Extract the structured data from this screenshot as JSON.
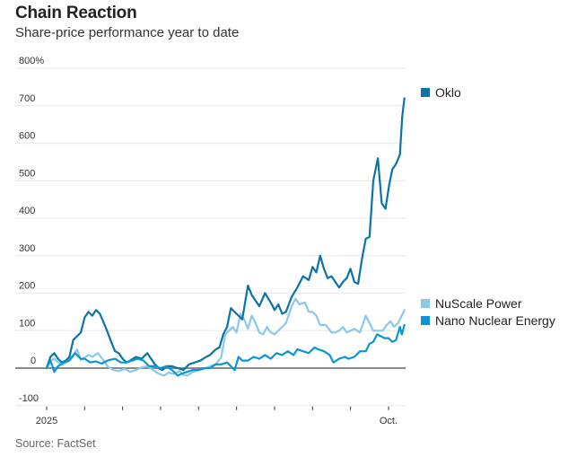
{
  "header": {
    "title": "Chain Reaction",
    "subtitle": "Share-price performance year to date"
  },
  "footer": {
    "source": "Source: FactSet"
  },
  "chart_data": {
    "type": "line",
    "title": "Chain Reaction",
    "subtitle": "Share-price performance year to date",
    "xlabel": "",
    "ylabel": "",
    "ylim": [
      -100,
      800
    ],
    "y_ticks": [
      {
        "value": 800,
        "label": "800%"
      },
      {
        "value": 700,
        "label": "700"
      },
      {
        "value": 600,
        "label": "600"
      },
      {
        "value": 500,
        "label": "500"
      },
      {
        "value": 400,
        "label": "400"
      },
      {
        "value": 300,
        "label": "300"
      },
      {
        "value": 200,
        "label": "200"
      },
      {
        "value": 100,
        "label": "100"
      },
      {
        "value": 0,
        "label": "0"
      },
      {
        "value": -100,
        "label": "-100"
      }
    ],
    "x_unit": "months since Jan 1, 2025",
    "xlim": [
      0,
      9.45
    ],
    "x_ticks": [
      {
        "value": 0,
        "label": "2025"
      },
      {
        "value": 1,
        "label": ""
      },
      {
        "value": 2,
        "label": ""
      },
      {
        "value": 3,
        "label": ""
      },
      {
        "value": 4,
        "label": ""
      },
      {
        "value": 5,
        "label": ""
      },
      {
        "value": 6,
        "label": ""
      },
      {
        "value": 7,
        "label": ""
      },
      {
        "value": 8,
        "label": ""
      },
      {
        "value": 9,
        "label": "Oct."
      }
    ],
    "grid": true,
    "legend_position": "right, beside line ends",
    "series": [
      {
        "name": "NuScale Power",
        "color": "#8cc8ec",
        "points": [
          [
            0,
            0
          ],
          [
            0.1,
            20
          ],
          [
            0.2,
            25
          ],
          [
            0.3,
            15
          ],
          [
            0.4,
            8
          ],
          [
            0.55,
            18
          ],
          [
            0.7,
            35
          ],
          [
            0.8,
            50
          ],
          [
            0.9,
            22
          ],
          [
            1.0,
            28
          ],
          [
            1.1,
            35
          ],
          [
            1.2,
            30
          ],
          [
            1.35,
            40
          ],
          [
            1.5,
            20
          ],
          [
            1.6,
            5
          ],
          [
            1.75,
            -5
          ],
          [
            1.9,
            -8
          ],
          [
            2.05,
            -2
          ],
          [
            2.2,
            -10
          ],
          [
            2.35,
            -5
          ],
          [
            2.5,
            2
          ],
          [
            2.65,
            5
          ],
          [
            2.8,
            -5
          ],
          [
            2.95,
            -15
          ],
          [
            3.1,
            -20
          ],
          [
            3.2,
            -12
          ],
          [
            3.35,
            -15
          ],
          [
            3.5,
            -8
          ],
          [
            3.6,
            -18
          ],
          [
            3.7,
            -20
          ],
          [
            3.85,
            -10
          ],
          [
            4.0,
            -5
          ],
          [
            4.15,
            -2
          ],
          [
            4.3,
            5
          ],
          [
            4.45,
            10
          ],
          [
            4.6,
            30
          ],
          [
            4.7,
            90
          ],
          [
            4.8,
            100
          ],
          [
            4.9,
            110
          ],
          [
            5.0,
            95
          ],
          [
            5.1,
            145
          ],
          [
            5.2,
            130
          ],
          [
            5.3,
            105
          ],
          [
            5.4,
            140
          ],
          [
            5.5,
            120
          ],
          [
            5.6,
            95
          ],
          [
            5.7,
            90
          ],
          [
            5.8,
            110
          ],
          [
            5.9,
            95
          ],
          [
            6.0,
            90
          ],
          [
            6.15,
            105
          ],
          [
            6.3,
            120
          ],
          [
            6.45,
            165
          ],
          [
            6.55,
            185
          ],
          [
            6.65,
            170
          ],
          [
            6.8,
            175
          ],
          [
            6.9,
            150
          ],
          [
            7.0,
            150
          ],
          [
            7.1,
            140
          ],
          [
            7.2,
            115
          ],
          [
            7.35,
            115
          ],
          [
            7.5,
            95
          ],
          [
            7.6,
            95
          ],
          [
            7.7,
            100
          ],
          [
            7.8,
            110
          ],
          [
            7.9,
            95
          ],
          [
            8.0,
            100
          ],
          [
            8.1,
            105
          ],
          [
            8.25,
            95
          ],
          [
            8.4,
            140
          ],
          [
            8.5,
            120
          ],
          [
            8.6,
            100
          ],
          [
            8.7,
            100
          ],
          [
            8.85,
            100
          ],
          [
            8.95,
            115
          ],
          [
            9.05,
            125
          ],
          [
            9.15,
            110
          ],
          [
            9.25,
            120
          ],
          [
            9.35,
            140
          ],
          [
            9.42,
            155
          ]
        ]
      },
      {
        "name": "Oklo",
        "color": "#0a73a8",
        "points": [
          [
            0,
            0
          ],
          [
            0.1,
            30
          ],
          [
            0.2,
            40
          ],
          [
            0.3,
            25
          ],
          [
            0.4,
            15
          ],
          [
            0.5,
            20
          ],
          [
            0.6,
            30
          ],
          [
            0.7,
            75
          ],
          [
            0.8,
            85
          ],
          [
            0.9,
            95
          ],
          [
            1.0,
            135
          ],
          [
            1.1,
            150
          ],
          [
            1.2,
            140
          ],
          [
            1.3,
            155
          ],
          [
            1.4,
            145
          ],
          [
            1.55,
            110
          ],
          [
            1.7,
            70
          ],
          [
            1.8,
            45
          ],
          [
            1.9,
            40
          ],
          [
            2.0,
            25
          ],
          [
            2.1,
            15
          ],
          [
            2.2,
            20
          ],
          [
            2.35,
            30
          ],
          [
            2.5,
            25
          ],
          [
            2.65,
            40
          ],
          [
            2.75,
            25
          ],
          [
            2.85,
            10
          ],
          [
            2.95,
            0
          ],
          [
            3.05,
            -5
          ],
          [
            3.15,
            5
          ],
          [
            3.3,
            5
          ],
          [
            3.45,
            0
          ],
          [
            3.6,
            -5
          ],
          [
            3.75,
            10
          ],
          [
            3.9,
            15
          ],
          [
            4.05,
            20
          ],
          [
            4.2,
            30
          ],
          [
            4.3,
            35
          ],
          [
            4.45,
            50
          ],
          [
            4.55,
            55
          ],
          [
            4.65,
            90
          ],
          [
            4.75,
            110
          ],
          [
            4.85,
            160
          ],
          [
            4.95,
            150
          ],
          [
            5.05,
            140
          ],
          [
            5.15,
            130
          ],
          [
            5.3,
            220
          ],
          [
            5.4,
            195
          ],
          [
            5.5,
            180
          ],
          [
            5.6,
            165
          ],
          [
            5.75,
            200
          ],
          [
            5.9,
            175
          ],
          [
            6.0,
            155
          ],
          [
            6.1,
            170
          ],
          [
            6.2,
            145
          ],
          [
            6.3,
            150
          ],
          [
            6.45,
            190
          ],
          [
            6.6,
            215
          ],
          [
            6.75,
            245
          ],
          [
            6.9,
            235
          ],
          [
            7.0,
            270
          ],
          [
            7.1,
            255
          ],
          [
            7.2,
            300
          ],
          [
            7.3,
            265
          ],
          [
            7.4,
            240
          ],
          [
            7.5,
            245
          ],
          [
            7.6,
            230
          ],
          [
            7.7,
            215
          ],
          [
            7.8,
            230
          ],
          [
            7.9,
            240
          ],
          [
            8.0,
            265
          ],
          [
            8.1,
            230
          ],
          [
            8.2,
            225
          ],
          [
            8.3,
            290
          ],
          [
            8.4,
            345
          ],
          [
            8.5,
            350
          ],
          [
            8.6,
            500
          ],
          [
            8.72,
            560
          ],
          [
            8.82,
            440
          ],
          [
            8.92,
            425
          ],
          [
            9.02,
            490
          ],
          [
            9.1,
            530
          ],
          [
            9.2,
            545
          ],
          [
            9.3,
            570
          ],
          [
            9.36,
            670
          ],
          [
            9.42,
            720
          ]
        ]
      },
      {
        "name": "Nano Nuclear Energy",
        "color": "#0a96d6",
        "points": [
          [
            0,
            0
          ],
          [
            0.1,
            20
          ],
          [
            0.2,
            -10
          ],
          [
            0.3,
            5
          ],
          [
            0.45,
            15
          ],
          [
            0.6,
            20
          ],
          [
            0.75,
            40
          ],
          [
            0.9,
            25
          ],
          [
            1.0,
            25
          ],
          [
            1.15,
            15
          ],
          [
            1.3,
            18
          ],
          [
            1.45,
            12
          ],
          [
            1.6,
            20
          ],
          [
            1.8,
            25
          ],
          [
            1.95,
            15
          ],
          [
            2.1,
            15
          ],
          [
            2.25,
            20
          ],
          [
            2.4,
            25
          ],
          [
            2.55,
            20
          ],
          [
            2.7,
            5
          ],
          [
            2.85,
            5
          ],
          [
            3.0,
            0
          ],
          [
            3.15,
            5
          ],
          [
            3.3,
            -5
          ],
          [
            3.45,
            -20
          ],
          [
            3.55,
            -15
          ],
          [
            3.7,
            -10
          ],
          [
            3.85,
            -5
          ],
          [
            4.0,
            -5
          ],
          [
            4.15,
            0
          ],
          [
            4.3,
            0
          ],
          [
            4.45,
            10
          ],
          [
            4.6,
            10
          ],
          [
            4.75,
            15
          ],
          [
            4.85,
            5
          ],
          [
            4.95,
            -5
          ],
          [
            5.05,
            30
          ],
          [
            5.15,
            20
          ],
          [
            5.3,
            20
          ],
          [
            5.45,
            30
          ],
          [
            5.6,
            25
          ],
          [
            5.75,
            35
          ],
          [
            5.9,
            25
          ],
          [
            6.05,
            40
          ],
          [
            6.2,
            35
          ],
          [
            6.35,
            45
          ],
          [
            6.5,
            35
          ],
          [
            6.6,
            50
          ],
          [
            6.75,
            45
          ],
          [
            6.9,
            40
          ],
          [
            7.05,
            55
          ],
          [
            7.15,
            50
          ],
          [
            7.3,
            45
          ],
          [
            7.45,
            35
          ],
          [
            7.55,
            15
          ],
          [
            7.7,
            25
          ],
          [
            7.85,
            30
          ],
          [
            7.95,
            25
          ],
          [
            8.1,
            30
          ],
          [
            8.25,
            45
          ],
          [
            8.4,
            45
          ],
          [
            8.5,
            65
          ],
          [
            8.6,
            70
          ],
          [
            8.7,
            90
          ],
          [
            8.8,
            85
          ],
          [
            8.9,
            80
          ],
          [
            9.0,
            80
          ],
          [
            9.1,
            70
          ],
          [
            9.2,
            75
          ],
          [
            9.3,
            110
          ],
          [
            9.35,
            90
          ],
          [
            9.42,
            115
          ]
        ]
      }
    ]
  }
}
